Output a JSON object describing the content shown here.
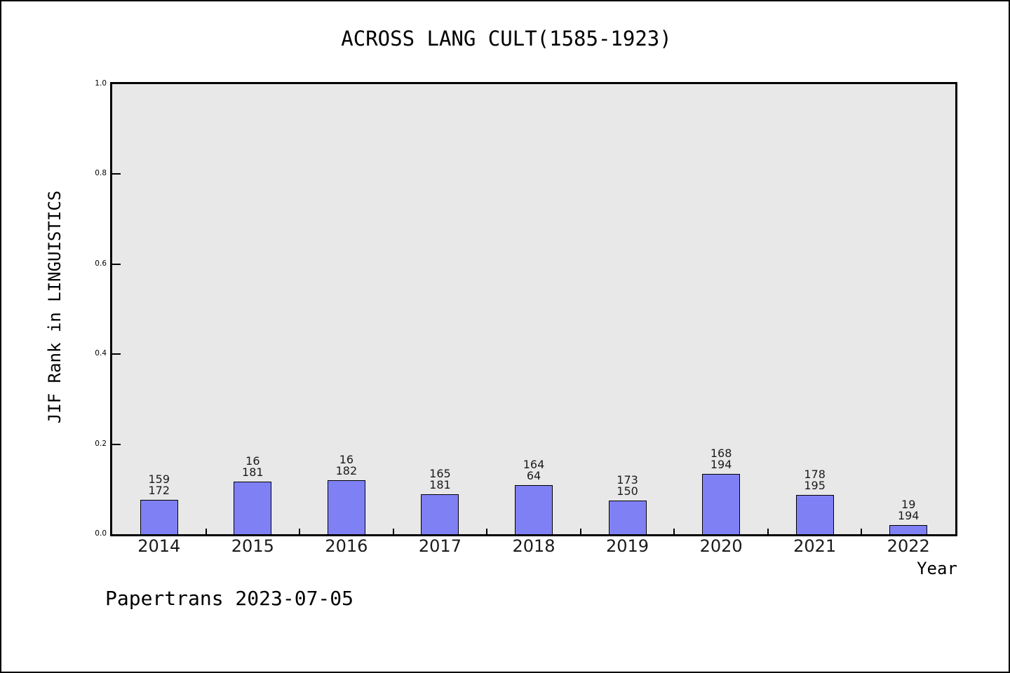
{
  "title": "ACROSS LANG CULT(1585-1923)",
  "footer": "Papertrans 2023-07-05",
  "chart_data": {
    "type": "bar",
    "title": "ACROSS LANG CULT(1585-1923)",
    "xlabel": "Year",
    "ylabel": "JIF Rank in LINGUISTICS",
    "categories": [
      "2014",
      "2015",
      "2016",
      "2017",
      "2018",
      "2019",
      "2020",
      "2021",
      "2022"
    ],
    "values": [
      0.076,
      0.117,
      0.12,
      0.089,
      0.109,
      0.075,
      0.134,
      0.087,
      0.02
    ],
    "bar_labels": [
      [
        "159",
        "172"
      ],
      [
        "16",
        "181"
      ],
      [
        "16",
        "182"
      ],
      [
        "165",
        "181"
      ],
      [
        "164",
        "64"
      ],
      [
        "173",
        "150"
      ],
      [
        "168",
        "194"
      ],
      [
        "178",
        "195"
      ],
      [
        "19",
        "194"
      ]
    ],
    "ylim": [
      0.0,
      1.0
    ],
    "yticks": [
      0.0,
      0.2,
      0.4,
      0.6,
      0.8,
      1.0
    ],
    "ytick_labels": [
      "0.0",
      "0.2",
      "0.4",
      "0.6",
      "0.8",
      "1.0"
    ],
    "grid": false,
    "legend": null,
    "bar_color": "#8080f5",
    "bar_edge_color": "#000000",
    "plot_bg_color": "#e8e8e8"
  }
}
